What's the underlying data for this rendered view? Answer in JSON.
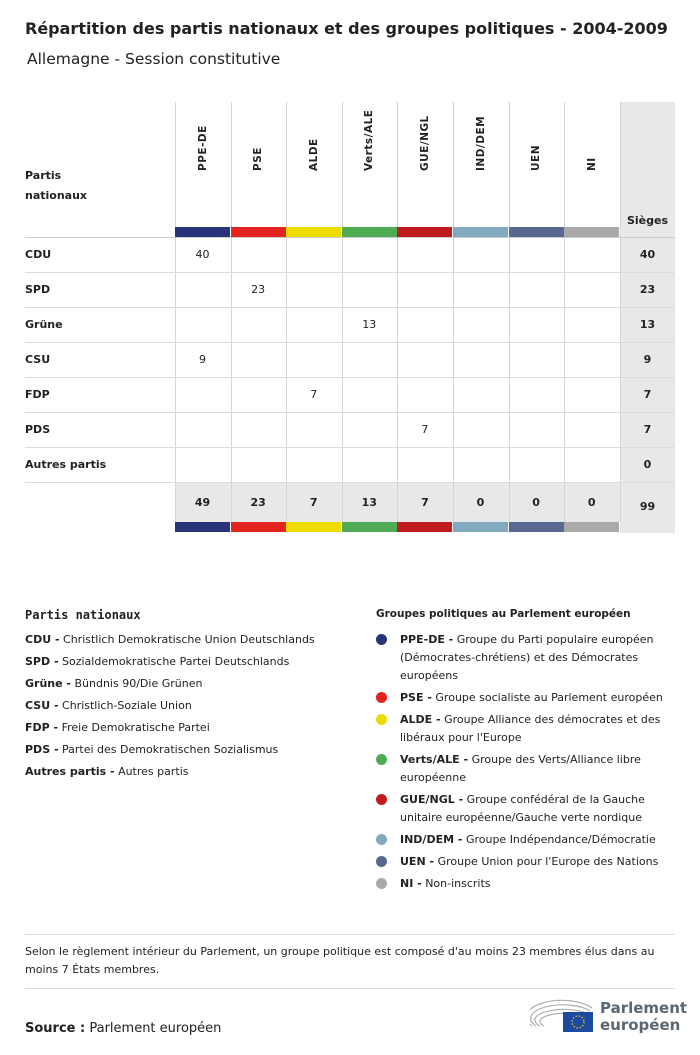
{
  "title": "Répartition des partis nationaux et des groupes politiques - 2004-2009",
  "subtitle": "Allemagne - Session constitutive",
  "table": {
    "row_header": "Partis nationaux",
    "seats_header": "Sièges",
    "groups": [
      {
        "label": "PPE-DE",
        "color": "#283479"
      },
      {
        "label": "PSE",
        "color": "#e3231f"
      },
      {
        "label": "ALDE",
        "color": "#ecdc00"
      },
      {
        "label": "Verts/ALE",
        "color": "#4fac55"
      },
      {
        "label": "GUE/NGL",
        "color": "#c01c1f"
      },
      {
        "label": "IND/DEM",
        "color": "#82a9bf"
      },
      {
        "label": "UEN",
        "color": "#586891"
      },
      {
        "label": "NI",
        "color": "#a9a9a9"
      }
    ],
    "rows": [
      {
        "party": "CDU",
        "values": [
          "40",
          "",
          "",
          "",
          "",
          "",
          "",
          ""
        ],
        "total": "40"
      },
      {
        "party": "SPD",
        "values": [
          "",
          "23",
          "",
          "",
          "",
          "",
          "",
          ""
        ],
        "total": "23"
      },
      {
        "party": "Grüne",
        "values": [
          "",
          "",
          "",
          "13",
          "",
          "",
          "",
          ""
        ],
        "total": "13"
      },
      {
        "party": "CSU",
        "values": [
          "9",
          "",
          "",
          "",
          "",
          "",
          "",
          ""
        ],
        "total": "9"
      },
      {
        "party": "FDP",
        "values": [
          "",
          "",
          "7",
          "",
          "",
          "",
          "",
          ""
        ],
        "total": "7"
      },
      {
        "party": "PDS",
        "values": [
          "",
          "",
          "",
          "",
          "7",
          "",
          "",
          ""
        ],
        "total": "7"
      },
      {
        "party": "Autres partis",
        "values": [
          "",
          "",
          "",
          "",
          "",
          "",
          "",
          ""
        ],
        "total": "0"
      }
    ],
    "totals": [
      "49",
      "23",
      "7",
      "13",
      "7",
      "0",
      "0",
      "0"
    ],
    "grand_total": "99"
  },
  "legend_parties": {
    "title": "Partis nationaux",
    "items": [
      {
        "abbr": "CDU -",
        "name": "Christlich Demokratische Union Deutschlands"
      },
      {
        "abbr": "SPD -",
        "name": "Sozialdemokratische Partei Deutschlands"
      },
      {
        "abbr": "Grüne -",
        "name": "Bündnis 90/Die Grünen"
      },
      {
        "abbr": "CSU -",
        "name": "Christlich-Soziale Union"
      },
      {
        "abbr": "FDP -",
        "name": "Freie Demokratische Partei"
      },
      {
        "abbr": "PDS -",
        "name": "Partei des Demokratischen Sozialismus"
      },
      {
        "abbr": "Autres partis -",
        "name": "Autres partis"
      }
    ]
  },
  "legend_groups": {
    "title": "Groupes politiques au Parlement européen",
    "items": [
      {
        "abbr": "PPE-DE -",
        "name": "Groupe du Parti populaire européen (Démocrates-chrétiens) et des Démocrates européens",
        "color": "#283479"
      },
      {
        "abbr": "PSE -",
        "name": "Groupe socialiste au Parlement européen",
        "color": "#e3231f"
      },
      {
        "abbr": "ALDE -",
        "name": "Groupe Alliance des démocrates et des libéraux pour l'Europe",
        "color": "#ecdc00"
      },
      {
        "abbr": "Verts/ALE -",
        "name": "Groupe des Verts/Alliance libre européenne",
        "color": "#4fac55"
      },
      {
        "abbr": "GUE/NGL -",
        "name": "Groupe confédéral de la Gauche unitaire européenne/Gauche verte nordique",
        "color": "#c01c1f"
      },
      {
        "abbr": "IND/DEM -",
        "name": "Groupe Indépendance/Démocratie",
        "color": "#82a9bf"
      },
      {
        "abbr": "UEN -",
        "name": "Groupe Union pour l'Europe des Nations",
        "color": "#586891"
      },
      {
        "abbr": "NI -",
        "name": "Non-inscrits",
        "color": "#a9a9a9"
      }
    ]
  },
  "note": "Selon le règlement intérieur du Parlement, un groupe politique est composé d'au moins 23 membres élus dans au moins 7 États membres.",
  "source_label": "Source :",
  "source": "Parlement européen",
  "logo_text": "Parlement européen"
}
